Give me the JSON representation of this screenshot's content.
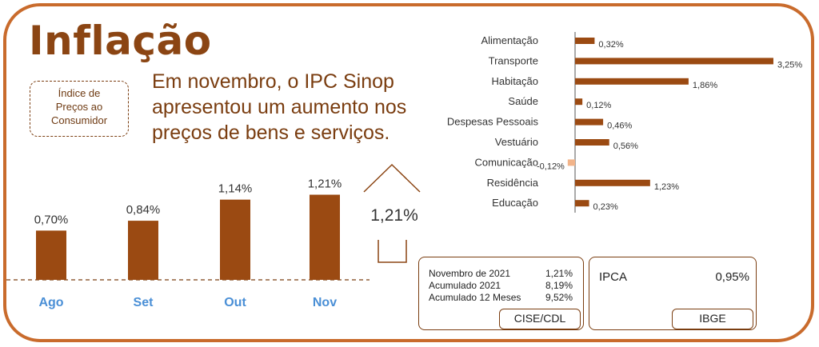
{
  "page": {
    "title": "Inflação",
    "badge": "Índice de\nPreços ao\nConsumidor",
    "headline": "Em novembro, o IPC Sinop apresentou um aumento nos preços de bens e serviços."
  },
  "colors": {
    "bar": "#9b4a12",
    "negative_bar": "#f2b48a",
    "month_label": "#4a8fd6",
    "frame": "#c96b2c"
  },
  "chart_data": [
    {
      "type": "bar",
      "categories": [
        "Ago",
        "Set",
        "Out",
        "Nov"
      ],
      "values": [
        0.7,
        0.84,
        1.14,
        1.21
      ],
      "data_labels": [
        "0,70%",
        "0,84%",
        "1,14%",
        "1,21%"
      ],
      "title": "",
      "xlabel": "",
      "ylabel": "",
      "ylim": [
        0,
        1.4
      ],
      "grid": false,
      "legend": "none"
    },
    {
      "type": "bar",
      "orientation": "horizontal",
      "categories": [
        "Alimentação",
        "Transporte",
        "Habitação",
        "Saúde",
        "Despesas Pessoais",
        "Vestuário",
        "Comunicação",
        "Residência",
        "Educação"
      ],
      "values": [
        0.32,
        3.25,
        1.86,
        0.12,
        0.46,
        0.56,
        -0.12,
        1.23,
        0.23
      ],
      "data_labels": [
        "0,32%",
        "3,25%",
        "1,86%",
        "0,12%",
        "0,46%",
        "0,56%",
        "-0,12%",
        "1,23%",
        "0,23%"
      ],
      "title": "",
      "xlabel": "",
      "ylabel": "",
      "xlim": [
        -0.15,
        3.25
      ],
      "grid": false,
      "legend": "none"
    }
  ],
  "highlight": {
    "value": "1,21%"
  },
  "cise": {
    "rows": [
      {
        "label": "Novembro de 2021",
        "value": "1,21%"
      },
      {
        "label": "Acumulado 2021",
        "value": "8,19%"
      },
      {
        "label": "Acumulado 12 Meses",
        "value": "9,52%"
      }
    ],
    "source": "CISE/CDL"
  },
  "ibge": {
    "label": "IPCA",
    "value": "0,95%",
    "source": "IBGE"
  }
}
